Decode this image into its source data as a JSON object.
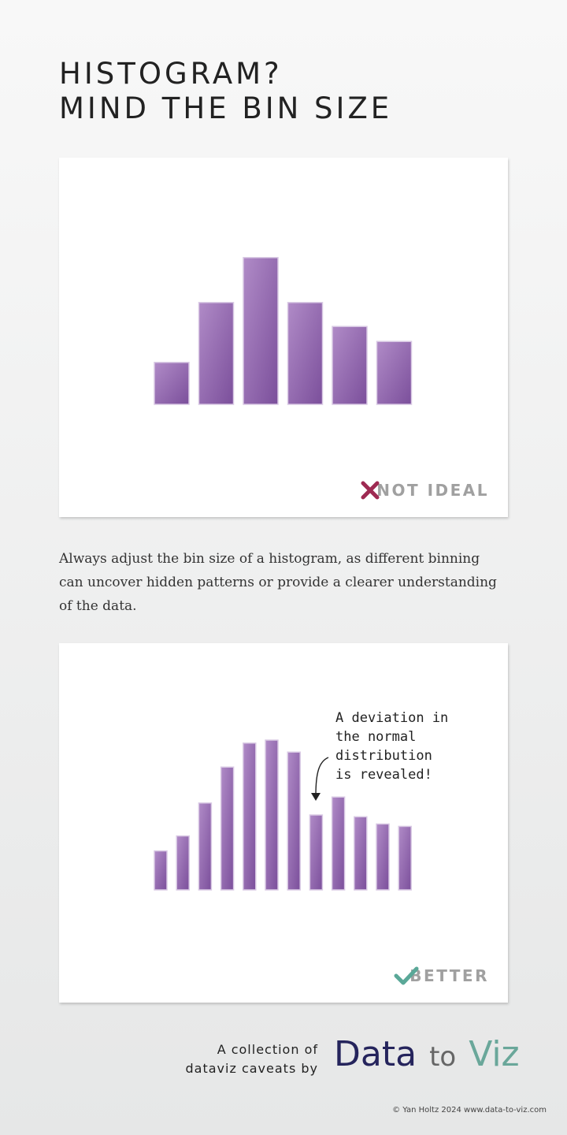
{
  "title": {
    "line1": "HISTOGRAM?",
    "line2": "MIND THE BIN SIZE"
  },
  "colors": {
    "bar_light": "#b08bc7",
    "bar_dark": "#7b4f9b",
    "cross": "#9e2a52",
    "check": "#5aa898"
  },
  "panels": {
    "top": {
      "verdict_icon": "cross-icon",
      "verdict_label": "NOT IDEAL"
    },
    "bottom": {
      "verdict_icon": "check-icon",
      "verdict_label": "BETTER",
      "annotation": {
        "line1": "A deviation in",
        "line2": "the normal",
        "line3": "distribution",
        "line4": "is revealed!"
      }
    }
  },
  "description": "Always adjust the bin size of a histogram, as different binning can uncover hidden patterns or provide a clearer understanding of the data.",
  "chart_data": [
    {
      "type": "bar",
      "title": "",
      "xlabel": "",
      "ylabel": "",
      "ylim": [
        0,
        25
      ],
      "grid": false,
      "values": [
        7,
        17,
        24.5,
        17,
        13,
        10.5
      ]
    },
    {
      "type": "bar",
      "title": "",
      "xlabel": "",
      "ylabel": "",
      "ylim": [
        0,
        25
      ],
      "grid": false,
      "values": [
        6.5,
        9,
        14.5,
        20.5,
        24.5,
        25,
        23,
        12.5,
        15.5,
        12.2,
        11,
        10.6
      ]
    }
  ],
  "footer": {
    "tagline_line1": "A collection of",
    "tagline_line2": "dataviz caveats by",
    "logo_word1": "Data",
    "logo_word2": "to",
    "logo_word3": "Viz",
    "copyright": "© Yan Holtz 2024 www.data-to-viz.com"
  }
}
